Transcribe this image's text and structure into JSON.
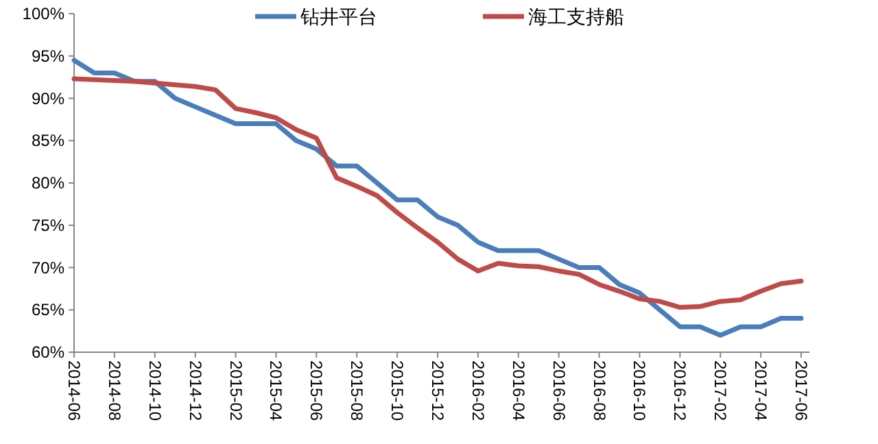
{
  "chart_data": {
    "type": "line",
    "categories": [
      "2014-06",
      null,
      "2014-08",
      null,
      "2014-10",
      null,
      "2014-12",
      null,
      "2015-02",
      null,
      "2015-04",
      null,
      "2015-06",
      null,
      "2015-08",
      null,
      "2015-10",
      null,
      "2015-12",
      null,
      "2016-02",
      null,
      "2016-04",
      null,
      "2016-06",
      null,
      "2016-08",
      null,
      "2016-10",
      null,
      "2016-12",
      null,
      "2017-02",
      null,
      "2017-04",
      null,
      "2017-06"
    ],
    "series": [
      {
        "name": "钻井平台",
        "color": "#4a7ebb",
        "values": [
          94.5,
          93,
          93,
          92,
          92,
          90,
          89,
          88,
          87,
          87,
          87,
          85,
          84,
          82,
          82,
          80,
          78,
          78,
          76,
          75,
          73,
          72,
          72,
          72,
          71,
          70,
          70,
          68,
          67,
          65,
          63,
          63,
          62,
          63,
          63,
          64,
          64
        ]
      },
      {
        "name": "海工支持船",
        "color": "#be4b48",
        "values": [
          92.3,
          92.2,
          92.1,
          92,
          91.8,
          91.6,
          91.4,
          91,
          88.8,
          88.3,
          87.7,
          86.3,
          85.3,
          80.6,
          79.6,
          78.5,
          76.5,
          74.7,
          73,
          71,
          69.6,
          70.5,
          70.2,
          70.1,
          69.6,
          69.2,
          68,
          67.2,
          66.3,
          66,
          65.3,
          65.4,
          66,
          66.2,
          67.2,
          68.1,
          68.4
        ]
      }
    ],
    "ylim": [
      60,
      100
    ],
    "yticks": [
      {
        "value": 60,
        "label": "60%"
      },
      {
        "value": 65,
        "label": "65%"
      },
      {
        "value": 70,
        "label": "70%"
      },
      {
        "value": 75,
        "label": "75%"
      },
      {
        "value": 80,
        "label": "80%"
      },
      {
        "value": 85,
        "label": "85%"
      },
      {
        "value": 90,
        "label": "90%"
      },
      {
        "value": 95,
        "label": "95%"
      },
      {
        "value": 100,
        "label": "100%"
      }
    ],
    "grid": false,
    "legend": "top",
    "marker": "none",
    "line_style": "solid"
  }
}
